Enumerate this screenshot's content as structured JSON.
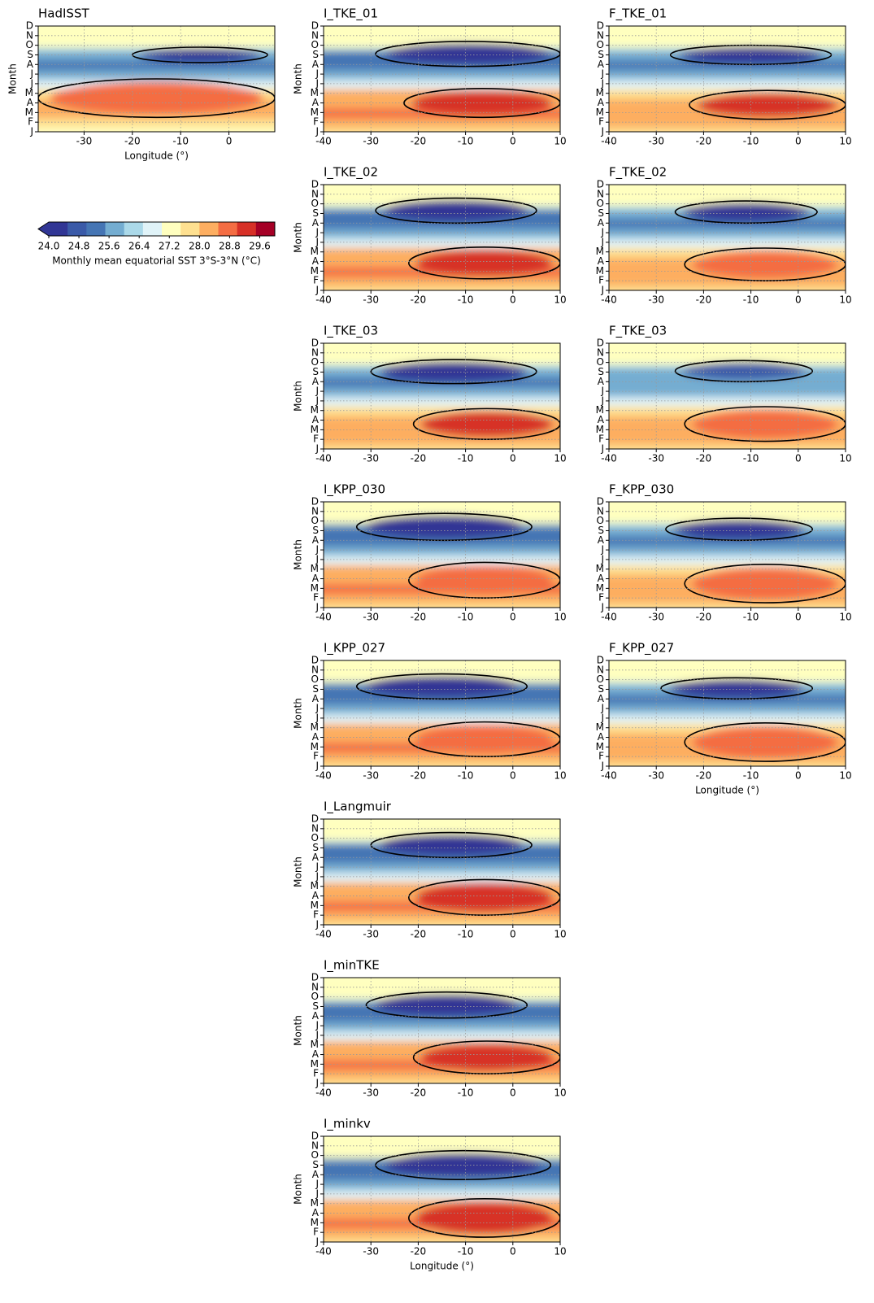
{
  "chart_data": {
    "type": "heatmap",
    "grid": true,
    "months": [
      "J",
      "F",
      "M",
      "A",
      "M",
      "J",
      "J",
      "A",
      "S",
      "O",
      "N",
      "D"
    ],
    "ylim": [
      0,
      11
    ],
    "colorbar": {
      "lim": [
        24.0,
        30.0
      ],
      "ticks": [
        {
          "value": 24.0,
          "label": "24.0"
        },
        {
          "value": 24.8,
          "label": "24.8"
        },
        {
          "value": 25.6,
          "label": "25.6"
        },
        {
          "value": 26.4,
          "label": "26.4"
        },
        {
          "value": 27.2,
          "label": "27.2"
        },
        {
          "value": 28.0,
          "label": "28.0"
        },
        {
          "value": 28.8,
          "label": "28.8"
        },
        {
          "value": 29.6,
          "label": "29.6"
        }
      ],
      "colors": [
        "#313695",
        "#3a5aa8",
        "#4575b4",
        "#74add1",
        "#abd9e9",
        "#e0f3f8",
        "#ffffbf",
        "#fee090",
        "#fdae61",
        "#f46d43",
        "#d73027",
        "#a50026"
      ],
      "label": "Monthly mean equatorial SST 3°S-3°N (°C)"
    },
    "panels": [
      {
        "title": "HadISST",
        "ylabel": "Month",
        "xlabel": "Longitude (°)",
        "xlim": [
          -39.5,
          9.5
        ],
        "xticks": [
          -30,
          -20,
          -10,
          0
        ],
        "month_mean": [
          27.0,
          27.8,
          28.3,
          28.3,
          27.9,
          26.9,
          25.7,
          25.3,
          25.5,
          26.0,
          26.6,
          27.1
        ],
        "cold_contour": {
          "lon": [
            -20,
            8
          ],
          "months": [
            7.2,
            8.8
          ],
          "core": 24.4
        },
        "warm_contour": {
          "lon": [
            -39.5,
            9.5
          ],
          "months": [
            1.5,
            5.5
          ],
          "core": 28.9
        }
      },
      {
        "title": "I_TKE_01",
        "ylabel": "Month",
        "xlim": [
          -40,
          10
        ],
        "xticks": [
          -40,
          -30,
          -20,
          -10,
          0,
          10
        ],
        "month_mean": [
          27.6,
          28.2,
          28.5,
          28.4,
          28.0,
          26.8,
          25.6,
          25.2,
          25.4,
          26.0,
          26.6,
          27.0
        ],
        "cold_contour": {
          "lon": [
            -29,
            10
          ],
          "months": [
            6.8,
            9.4
          ],
          "core": 24.3
        },
        "warm_contour": {
          "lon": [
            -23,
            10
          ],
          "months": [
            1.5,
            4.5
          ],
          "core": 29.2
        }
      },
      {
        "title": "F_TKE_01",
        "xlim": [
          -40,
          10
        ],
        "xticks": [
          -40,
          -30,
          -20,
          -10,
          0,
          10
        ],
        "month_mean": [
          27.6,
          28.1,
          28.4,
          28.3,
          27.9,
          26.9,
          25.8,
          25.4,
          25.6,
          26.1,
          26.7,
          27.1
        ],
        "cold_contour": {
          "lon": [
            -27,
            7
          ],
          "months": [
            7.0,
            9.0
          ],
          "core": 24.4
        },
        "warm_contour": {
          "lon": [
            -23,
            10
          ],
          "months": [
            1.3,
            4.3
          ],
          "core": 29.0
        }
      },
      {
        "title": "I_TKE_02",
        "ylabel": "Month",
        "xlim": [
          -40,
          10
        ],
        "xticks": [
          -40,
          -30,
          -20,
          -10,
          0,
          10
        ],
        "month_mean": [
          27.6,
          28.2,
          28.5,
          28.4,
          28.0,
          26.8,
          25.6,
          25.2,
          25.4,
          26.0,
          26.6,
          27.0
        ],
        "cold_contour": {
          "lon": [
            -29,
            5
          ],
          "months": [
            7.0,
            9.6
          ],
          "core": 24.3
        },
        "warm_contour": {
          "lon": [
            -22,
            10
          ],
          "months": [
            1.2,
            4.5
          ],
          "core": 29.1
        }
      },
      {
        "title": "F_TKE_02",
        "xlim": [
          -40,
          10
        ],
        "xticks": [
          -40,
          -30,
          -20,
          -10,
          0,
          10
        ],
        "month_mean": [
          27.7,
          28.2,
          28.4,
          28.3,
          27.9,
          26.9,
          25.8,
          25.4,
          25.6,
          26.1,
          26.7,
          27.1
        ],
        "cold_contour": {
          "lon": [
            -26,
            4
          ],
          "months": [
            7.0,
            9.3
          ],
          "core": 24.4
        },
        "warm_contour": {
          "lon": [
            -24,
            10
          ],
          "months": [
            1.0,
            4.4
          ],
          "core": 28.9
        }
      },
      {
        "title": "I_TKE_03",
        "ylabel": "Month",
        "xlim": [
          -40,
          10
        ],
        "xticks": [
          -40,
          -30,
          -20,
          -10,
          0,
          10
        ],
        "month_mean": [
          27.5,
          28.1,
          28.4,
          28.3,
          27.9,
          26.7,
          25.6,
          25.3,
          25.5,
          26.0,
          26.5,
          27.0
        ],
        "cold_contour": {
          "lon": [
            -30,
            5
          ],
          "months": [
            6.8,
            9.3
          ],
          "core": 24.4
        },
        "warm_contour": {
          "lon": [
            -21,
            10
          ],
          "months": [
            1.0,
            4.2
          ],
          "core": 29.1
        }
      },
      {
        "title": "F_TKE_03",
        "xlim": [
          -40,
          10
        ],
        "xticks": [
          -40,
          -30,
          -20,
          -10,
          0,
          10
        ],
        "month_mean": [
          27.7,
          28.2,
          28.4,
          28.3,
          27.9,
          26.9,
          25.9,
          25.5,
          25.7,
          26.2,
          26.7,
          27.1
        ],
        "cold_contour": {
          "lon": [
            -26,
            3
          ],
          "months": [
            7.0,
            9.2
          ],
          "core": 24.5
        },
        "warm_contour": {
          "lon": [
            -24,
            10
          ],
          "months": [
            0.8,
            4.4
          ],
          "core": 28.9
        }
      },
      {
        "title": "I_KPP_030",
        "ylabel": "Month",
        "xlim": [
          -40,
          10
        ],
        "xticks": [
          -40,
          -30,
          -20,
          -10,
          0,
          10
        ],
        "month_mean": [
          27.7,
          28.3,
          28.5,
          28.4,
          28.0,
          26.9,
          25.6,
          25.1,
          25.3,
          25.9,
          26.6,
          27.1
        ],
        "cold_contour": {
          "lon": [
            -33,
            4
          ],
          "months": [
            7.0,
            9.8
          ],
          "core": 24.2
        },
        "warm_contour": {
          "lon": [
            -22,
            10
          ],
          "months": [
            1.0,
            4.7
          ],
          "core": 28.9
        }
      },
      {
        "title": "F_KPP_030",
        "xlim": [
          -40,
          10
        ],
        "xticks": [
          -40,
          -30,
          -20,
          -10,
          0,
          10
        ],
        "month_mean": [
          27.7,
          28.2,
          28.4,
          28.3,
          27.9,
          26.9,
          25.8,
          25.4,
          25.6,
          26.1,
          26.7,
          27.1
        ],
        "cold_contour": {
          "lon": [
            -28,
            3
          ],
          "months": [
            7.0,
            9.3
          ],
          "core": 24.4
        },
        "warm_contour": {
          "lon": [
            -24,
            10
          ],
          "months": [
            0.5,
            4.5
          ],
          "core": 28.8
        }
      },
      {
        "title": "I_KPP_027",
        "ylabel": "Month",
        "xlim": [
          -40,
          10
        ],
        "xticks": [
          -40,
          -30,
          -20,
          -10,
          0,
          10
        ],
        "month_mean": [
          27.7,
          28.3,
          28.5,
          28.4,
          28.0,
          26.9,
          25.6,
          25.1,
          25.3,
          25.9,
          26.6,
          27.1
        ],
        "cold_contour": {
          "lon": [
            -33,
            3
          ],
          "months": [
            7.0,
            9.6
          ],
          "core": 24.2
        },
        "warm_contour": {
          "lon": [
            -22,
            10
          ],
          "months": [
            1.0,
            4.6
          ],
          "core": 28.9
        }
      },
      {
        "title": "F_KPP_027",
        "xlabel": "Longitude (°)",
        "xlim": [
          -40,
          10
        ],
        "xticks": [
          -40,
          -30,
          -20,
          -10,
          0,
          10
        ],
        "month_mean": [
          27.7,
          28.2,
          28.4,
          28.3,
          27.9,
          26.9,
          25.8,
          25.4,
          25.6,
          26.1,
          26.7,
          27.1
        ],
        "cold_contour": {
          "lon": [
            -29,
            3
          ],
          "months": [
            7.0,
            9.2
          ],
          "core": 24.4
        },
        "warm_contour": {
          "lon": [
            -24,
            10
          ],
          "months": [
            0.5,
            4.5
          ],
          "core": 28.8
        }
      },
      {
        "title": "I_Langmuir",
        "ylabel": "Month",
        "xlim": [
          -40,
          10
        ],
        "xticks": [
          -40,
          -30,
          -20,
          -10,
          0,
          10
        ],
        "month_mean": [
          27.6,
          28.2,
          28.5,
          28.4,
          28.0,
          26.8,
          25.6,
          25.2,
          25.4,
          26.0,
          26.6,
          27.0
        ],
        "cold_contour": {
          "lon": [
            -30,
            4
          ],
          "months": [
            7.0,
            9.6
          ],
          "core": 24.2
        },
        "warm_contour": {
          "lon": [
            -22,
            10
          ],
          "months": [
            1.0,
            4.7
          ],
          "core": 29.1
        }
      },
      {
        "title": "I_minTKE",
        "ylabel": "Month",
        "xlim": [
          -40,
          10
        ],
        "xticks": [
          -40,
          -30,
          -20,
          -10,
          0,
          10
        ],
        "month_mean": [
          27.6,
          28.2,
          28.5,
          28.4,
          28.0,
          26.8,
          25.6,
          25.2,
          25.4,
          26.0,
          26.6,
          27.0
        ],
        "cold_contour": {
          "lon": [
            -31,
            3
          ],
          "months": [
            6.8,
            9.5
          ],
          "core": 24.3
        },
        "warm_contour": {
          "lon": [
            -21,
            10
          ],
          "months": [
            1.0,
            4.4
          ],
          "core": 29.1
        }
      },
      {
        "title": "I_minkv",
        "ylabel": "Month",
        "xlabel": "Longitude (°)",
        "xlim": [
          -40,
          10
        ],
        "xticks": [
          -40,
          -30,
          -20,
          -10,
          0,
          10
        ],
        "month_mean": [
          27.6,
          28.2,
          28.5,
          28.4,
          28.0,
          26.7,
          25.5,
          25.1,
          25.3,
          25.9,
          26.6,
          27.0
        ],
        "cold_contour": {
          "lon": [
            -29,
            8
          ],
          "months": [
            6.5,
            9.5
          ],
          "core": 24.2
        },
        "warm_contour": {
          "lon": [
            -22,
            10
          ],
          "months": [
            0.5,
            4.5
          ],
          "core": 29.2
        }
      }
    ]
  }
}
